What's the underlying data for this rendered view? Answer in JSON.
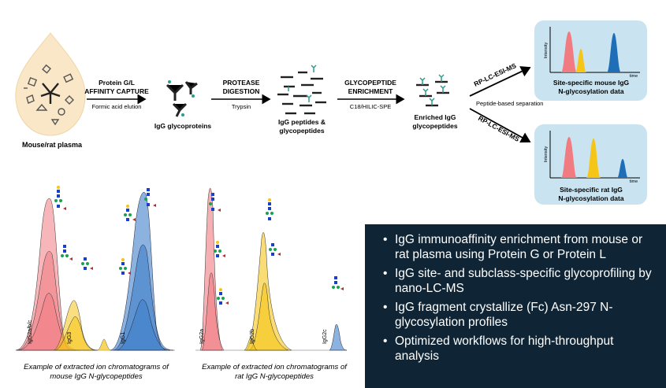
{
  "workflow": {
    "plasma_label": "Mouse/rat plasma",
    "step1_title_line1": "Protein G/L",
    "step1_title_line2": "AFFINITY CAPTURE",
    "step1_sub": "Formic acid elution",
    "glycoproteins_label": "IgG glycoproteins",
    "step2_title_line1": "PROTEASE",
    "step2_title_line2": "DIGESTION",
    "step2_sub": "Trypsin",
    "peptides_label_line1": "IgG peptides &",
    "peptides_label_line2": "glycopeptides",
    "step3_title_line1": "GLYCOPEPTIDE",
    "step3_title_line2": "ENRICHMENT",
    "step3_sub": "C18/HILIC-SPE",
    "enriched_label_line1": "Enriched IgG",
    "enriched_label_line2": "glycopeptides",
    "lcms_upper": "RP-LC-ESI-MS",
    "lcms_lower": "RP-LC-ESI-MS",
    "separation_label": "Peptide-based separation",
    "mouse_panel": {
      "y_label": "Intensity",
      "x_label": "time",
      "title_line1": "Site-specific mouse IgG",
      "title_line2": "N-glycosylation data"
    },
    "rat_panel": {
      "y_label": "Intensity",
      "x_label": "time",
      "title_line1": "Site-specific rat IgG",
      "title_line2": "N-glycosylation data"
    }
  },
  "chromatograms": {
    "mouse": {
      "peaks": [
        "IgG2a/b/c",
        "IgG3",
        "IgG1"
      ],
      "caption_line1": "Example of extracted ion chromatograms of",
      "caption_line2": "mouse IgG N-glycopeptides"
    },
    "rat": {
      "peaks": [
        "IgG2a",
        "IgG2b",
        "IgG2c"
      ],
      "caption_line1": "Example of extracted ion chromatograms of",
      "caption_line2": "rat IgG N-glycopeptides"
    }
  },
  "summary": {
    "bullets": [
      "IgG immunoaffinity enrichment from mouse or rat plasma using Protein G or Protein L",
      "IgG site- and subclass-specific glycoprofiling by nano-LC-MS",
      "IgG fragment crystallize (Fc) Asn-297 N-glycosylation profiles",
      "Optimized workflows for high-throughput analysis"
    ]
  },
  "colors": {
    "red_peak": "#f07c82",
    "yellow_peak": "#f5c518",
    "blue_peak": "#1f6fb8",
    "panel_bg": "#c9e4f0",
    "summary_bg": "#0f2535",
    "plasma_bg": "#f9e7c7"
  }
}
